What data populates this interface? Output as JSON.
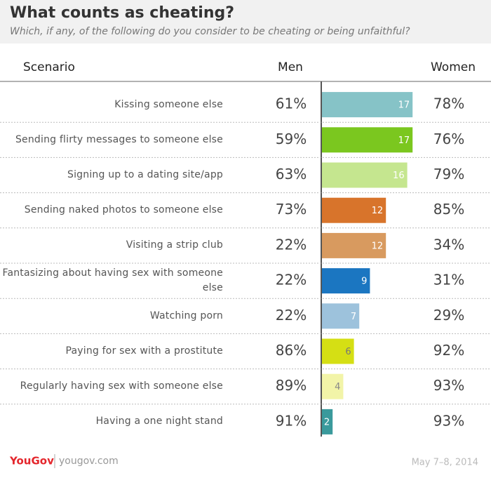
{
  "chart_data": {
    "type": "bar",
    "title": "What counts as cheating?",
    "subtitle": "Which, if any, of the following do you consider to be cheating or being unfaithful?",
    "category_header": "Scenario",
    "categories": [
      "Kissing someone else",
      "Sending flirty messages to someone else",
      "Signing up to a dating site/app",
      "Sending naked photos to someone else",
      "Visiting a strip club",
      "Fantasizing about having sex with someone else",
      "Watching porn",
      "Paying for sex with a prostitute",
      "Regularly having sex with someone else",
      "Having a one night stand"
    ],
    "series": [
      {
        "name": "Men",
        "values": [
          61,
          59,
          63,
          73,
          22,
          22,
          22,
          86,
          89,
          91
        ],
        "value_labels": [
          "61%",
          "59%",
          "63%",
          "73%",
          "22%",
          "22%",
          "22%",
          "86%",
          "89%",
          "91%"
        ]
      },
      {
        "name": "Women",
        "values": [
          78,
          76,
          79,
          85,
          34,
          31,
          29,
          92,
          93,
          93
        ],
        "value_labels": [
          "78%",
          "76%",
          "79%",
          "85%",
          "34%",
          "31%",
          "29%",
          "92%",
          "93%",
          "93%"
        ]
      }
    ],
    "gap": {
      "values": [
        17,
        17,
        16,
        12,
        12,
        9,
        7,
        6,
        4,
        2
      ],
      "colors": [
        "#86c3c7",
        "#7bc71f",
        "#c5e68f",
        "#d8742b",
        "#d89a5f",
        "#1b76c1",
        "#9dc2dc",
        "#d5df14",
        "#f2f4a8",
        "#3a9a9c"
      ],
      "label_colors": [
        "#ffffff",
        "#ffffff",
        "#ffffff",
        "#ffffff",
        "#ffffff",
        "#ffffff",
        "#ffffff",
        "#777777",
        "#888888",
        "#ffffff"
      ]
    },
    "source": {
      "brand": "YouGov",
      "site": "yougov.com",
      "date": "May 7–8, 2014"
    }
  }
}
